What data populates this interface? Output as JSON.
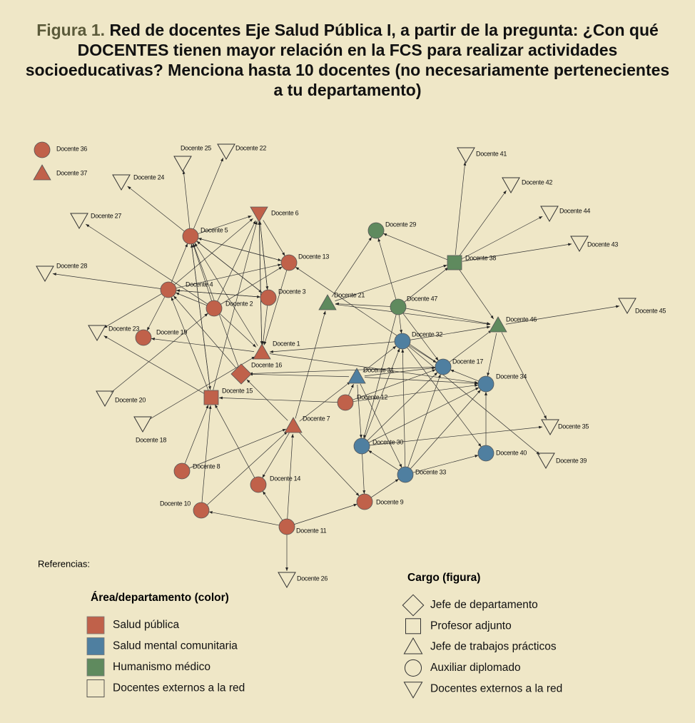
{
  "header": {
    "figure": "Figura 1.",
    "title": "Red de docentes Eje Salud Pública I, a partir de la pregunta: ¿Con qué DOCENTES tienen mayor relación en la FCS para realizar actividades socioeducativas? Menciona hasta 10 docentes (no necesariamente pertenecientes a tu departamento)"
  },
  "nodes": [
    {
      "label": "Docente 36",
      "shape": "circle",
      "color": "#c0614a"
    },
    {
      "label": "Docente 37",
      "shape": "triangle",
      "color": "#c0614a"
    },
    {
      "label": "Docente 25",
      "shape": "triangle-down",
      "color": "none"
    },
    {
      "label": "Docente 22",
      "shape": "triangle-down",
      "color": "none"
    },
    {
      "label": "Docente 24",
      "shape": "triangle-down",
      "color": "none"
    },
    {
      "label": "Docente 27",
      "shape": "triangle-down",
      "color": "none"
    },
    {
      "label": "Docente 28",
      "shape": "triangle-down",
      "color": "none"
    },
    {
      "label": "Docente 5",
      "shape": "circle",
      "color": "#c0614a"
    },
    {
      "label": "Docente 6",
      "shape": "triangle-down",
      "color": "#c0614a"
    },
    {
      "label": "Docente 13",
      "shape": "circle",
      "color": "#c0614a"
    },
    {
      "label": "Docente 4",
      "shape": "circle",
      "color": "#c0614a"
    },
    {
      "label": "Docente 3",
      "shape": "circle",
      "color": "#c0614a"
    },
    {
      "label": "Docente 2",
      "shape": "circle",
      "color": "#c0614a"
    },
    {
      "label": "Docente 19",
      "shape": "circle",
      "color": "#c0614a"
    },
    {
      "label": "Docente 23",
      "shape": "triangle-down",
      "color": "none"
    },
    {
      "label": "Docente 1",
      "shape": "triangle",
      "color": "#c0614a"
    },
    {
      "label": "Docente 16",
      "shape": "diamond",
      "color": "#c0614a"
    },
    {
      "label": "Docente 15",
      "shape": "square",
      "color": "#c0614a"
    },
    {
      "label": "Docente 20",
      "shape": "triangle-down",
      "color": "none"
    },
    {
      "label": "Docente 18",
      "shape": "triangle-down",
      "color": "none"
    },
    {
      "label": "Docente 7",
      "shape": "triangle",
      "color": "#c0614a"
    },
    {
      "label": "Docente 12",
      "shape": "circle",
      "color": "#c0614a"
    },
    {
      "label": "Docente 8",
      "shape": "circle",
      "color": "#c0614a"
    },
    {
      "label": "Docente 14",
      "shape": "circle",
      "color": "#c0614a"
    },
    {
      "label": "Docente 10",
      "shape": "circle",
      "color": "#c0614a"
    },
    {
      "label": "Docente 11",
      "shape": "circle",
      "color": "#c0614a"
    },
    {
      "label": "Docente 26",
      "shape": "triangle-down",
      "color": "none"
    },
    {
      "label": "Docente 9",
      "shape": "circle",
      "color": "#c0614a"
    },
    {
      "label": "Docente 29",
      "shape": "circle",
      "color": "#5f8a5e"
    },
    {
      "label": "Docente 21",
      "shape": "triangle",
      "color": "#5f8a5e"
    },
    {
      "label": "Docente 47",
      "shape": "circle",
      "color": "#5f8a5e"
    },
    {
      "label": "Docente 38",
      "shape": "square",
      "color": "#5f8a5e"
    },
    {
      "label": "Docente 41",
      "shape": "triangle-down",
      "color": "none"
    },
    {
      "label": "Docente 42",
      "shape": "triangle-down",
      "color": "none"
    },
    {
      "label": "Docente 44",
      "shape": "triangle-down",
      "color": "none"
    },
    {
      "label": "Docente 43",
      "shape": "triangle-down",
      "color": "none"
    },
    {
      "label": "Docente 46",
      "shape": "triangle",
      "color": "#5f8a5e"
    },
    {
      "label": "Docente 45",
      "shape": "triangle-down",
      "color": "none"
    },
    {
      "label": "Docente 32",
      "shape": "circle",
      "color": "#4f7fa0"
    },
    {
      "label": "Docente 31",
      "shape": "triangle",
      "color": "#4f7fa0"
    },
    {
      "label": "Docente 17",
      "shape": "circle",
      "color": "#4f7fa0"
    },
    {
      "label": "Docente 34",
      "shape": "circle",
      "color": "#4f7fa0"
    },
    {
      "label": "Docente 30",
      "shape": "circle",
      "color": "#4f7fa0"
    },
    {
      "label": "Docente 33",
      "shape": "circle",
      "color": "#4f7fa0"
    },
    {
      "label": "Docente 40",
      "shape": "circle",
      "color": "#4f7fa0"
    },
    {
      "label": "Docente 35",
      "shape": "triangle-down",
      "color": "none"
    },
    {
      "label": "Docente 39",
      "shape": "triangle-down",
      "color": "none"
    }
  ],
  "legend": {
    "references": "Referencias:",
    "area": {
      "title": "Área/departamento (color)",
      "items": [
        {
          "label": "Salud pública",
          "color": "#c0614a"
        },
        {
          "label": "Salud mental comunitaria",
          "color": "#4f7fa0"
        },
        {
          "label": "Humanismo médico",
          "color": "#5f8a5e"
        },
        {
          "label": "Docentes externos a la red",
          "color": "none"
        }
      ]
    },
    "cargo": {
      "title": "Cargo (figura)",
      "items": [
        {
          "label": "Jefe de departamento",
          "shape": "diamond"
        },
        {
          "label": "Profesor adjunto",
          "shape": "square"
        },
        {
          "label": "Jefe de trabajos prácticos",
          "shape": "triangle"
        },
        {
          "label": "Auxiliar diplomado",
          "shape": "circle"
        },
        {
          "label": "Docentes externos a la red",
          "shape": "triangle-down"
        }
      ]
    }
  }
}
